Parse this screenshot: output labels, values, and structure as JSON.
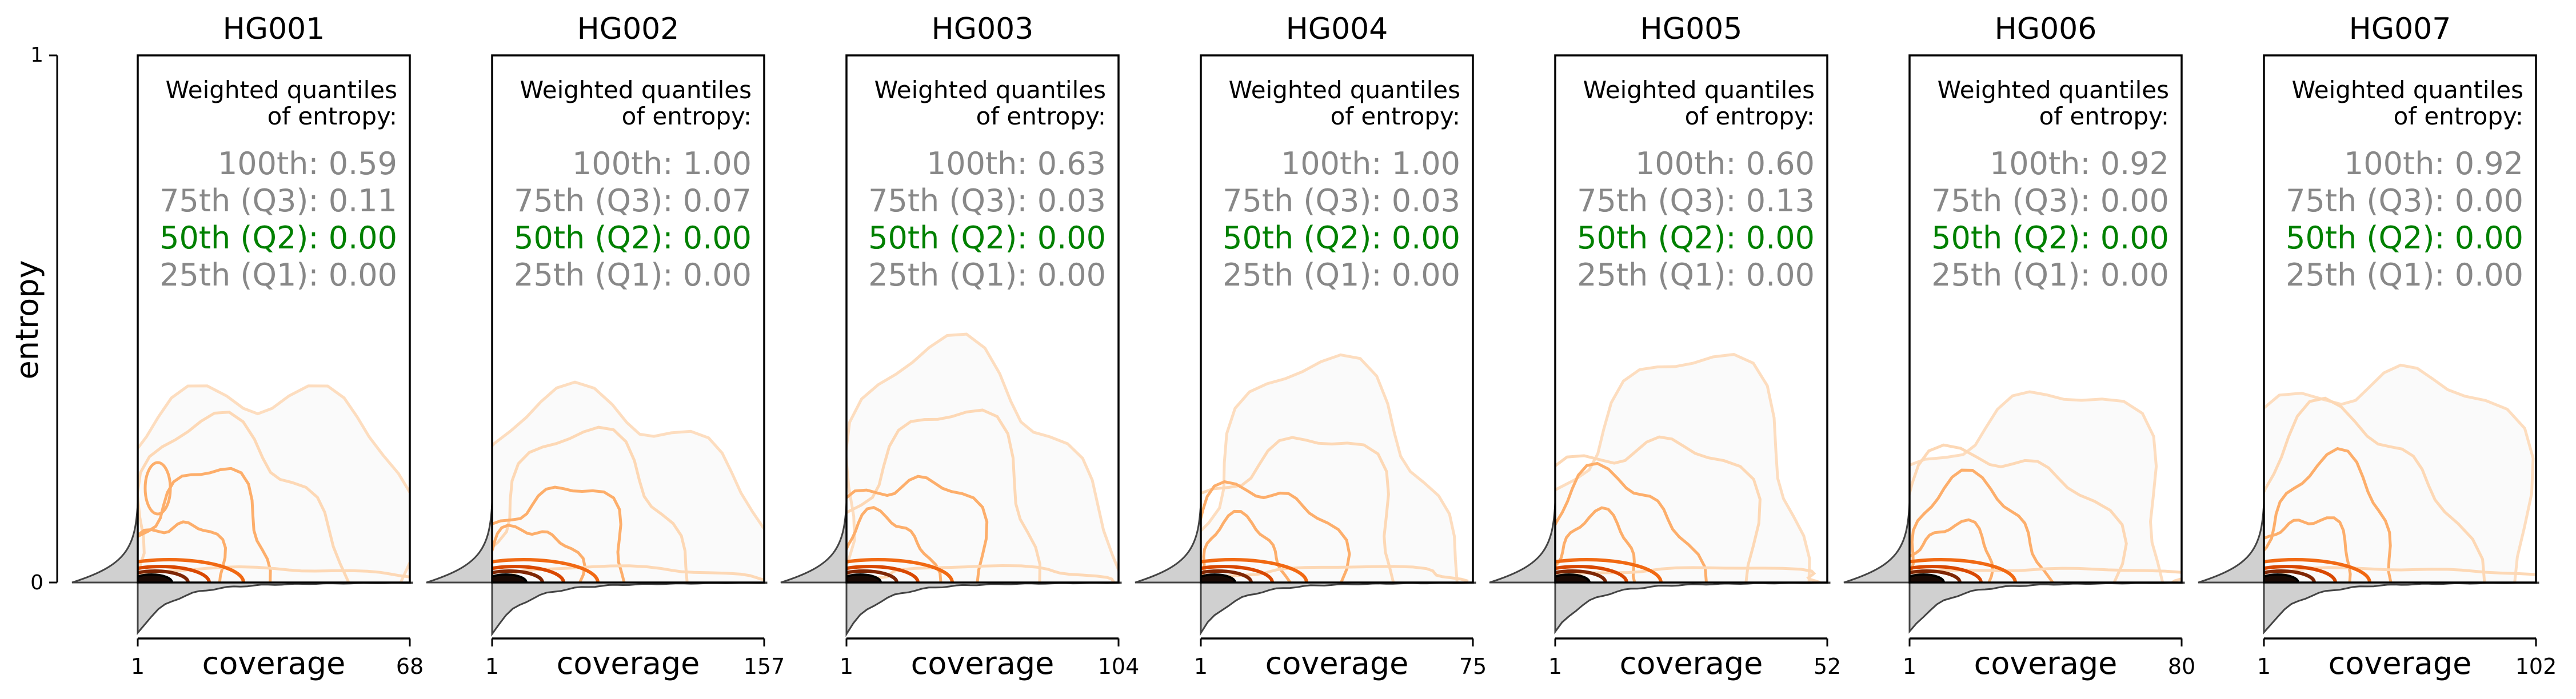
{
  "figure": {
    "ylabel": "entropy",
    "y_ticks": [
      "1",
      "0"
    ]
  },
  "colors": {
    "q2": "#008000",
    "quantile_other": "#888888",
    "heading": "#000000",
    "marginal_fill": "#d0d0d0",
    "marginal_line": "#444444",
    "contour_light": "#fdd8b5",
    "contour_mid": "#fdae6b",
    "contour_orange": "#f16913",
    "contour_red": "#d94801",
    "contour_dark": "#7f2704",
    "contour_core": "#1a0a05"
  },
  "chart_data": [
    {
      "type": "kde2d",
      "title": "HG001",
      "xlabel": "coverage",
      "xlim": [
        1,
        68
      ],
      "x_ticks": [
        "1",
        "68"
      ],
      "ylim": [
        0,
        1
      ],
      "quantiles_heading": [
        "Weighted quantiles",
        "of entropy:"
      ],
      "quantiles": [
        {
          "label": "100th: 0.59",
          "value": 0.59
        },
        {
          "label": "75th (Q3): 0.11",
          "value": 0.11
        },
        {
          "label": "50th (Q2): 0.00",
          "value": 0.0
        },
        {
          "label": "25th (Q1): 0.00",
          "value": 0.0
        }
      ]
    },
    {
      "type": "kde2d",
      "title": "HG002",
      "xlabel": "coverage",
      "xlim": [
        1,
        157
      ],
      "x_ticks": [
        "1",
        "157"
      ],
      "ylim": [
        0,
        1
      ],
      "quantiles_heading": [
        "Weighted quantiles",
        "of entropy:"
      ],
      "quantiles": [
        {
          "label": "100th: 1.00",
          "value": 1.0
        },
        {
          "label": "75th (Q3): 0.07",
          "value": 0.07
        },
        {
          "label": "50th (Q2): 0.00",
          "value": 0.0
        },
        {
          "label": "25th (Q1): 0.00",
          "value": 0.0
        }
      ]
    },
    {
      "type": "kde2d",
      "title": "HG003",
      "xlabel": "coverage",
      "xlim": [
        1,
        104
      ],
      "x_ticks": [
        "1",
        "104"
      ],
      "ylim": [
        0,
        1
      ],
      "quantiles_heading": [
        "Weighted quantiles",
        "of entropy:"
      ],
      "quantiles": [
        {
          "label": "100th: 0.63",
          "value": 0.63
        },
        {
          "label": "75th (Q3): 0.03",
          "value": 0.03
        },
        {
          "label": "50th (Q2): 0.00",
          "value": 0.0
        },
        {
          "label": "25th (Q1): 0.00",
          "value": 0.0
        }
      ]
    },
    {
      "type": "kde2d",
      "title": "HG004",
      "xlabel": "coverage",
      "xlim": [
        1,
        75
      ],
      "x_ticks": [
        "1",
        "75"
      ],
      "ylim": [
        0,
        1
      ],
      "quantiles_heading": [
        "Weighted quantiles",
        "of entropy:"
      ],
      "quantiles": [
        {
          "label": "100th: 1.00",
          "value": 1.0
        },
        {
          "label": "75th (Q3): 0.03",
          "value": 0.03
        },
        {
          "label": "50th (Q2): 0.00",
          "value": 0.0
        },
        {
          "label": "25th (Q1): 0.00",
          "value": 0.0
        }
      ]
    },
    {
      "type": "kde2d",
      "title": "HG005",
      "xlabel": "coverage",
      "xlim": [
        1,
        52
      ],
      "x_ticks": [
        "1",
        "52"
      ],
      "ylim": [
        0,
        1
      ],
      "quantiles_heading": [
        "Weighted quantiles",
        "of entropy:"
      ],
      "quantiles": [
        {
          "label": "100th: 0.60",
          "value": 0.6
        },
        {
          "label": "75th (Q3): 0.13",
          "value": 0.13
        },
        {
          "label": "50th (Q2): 0.00",
          "value": 0.0
        },
        {
          "label": "25th (Q1): 0.00",
          "value": 0.0
        }
      ]
    },
    {
      "type": "kde2d",
      "title": "HG006",
      "xlabel": "coverage",
      "xlim": [
        1,
        80
      ],
      "x_ticks": [
        "1",
        "80"
      ],
      "ylim": [
        0,
        1
      ],
      "quantiles_heading": [
        "Weighted quantiles",
        "of entropy:"
      ],
      "quantiles": [
        {
          "label": "100th: 0.92",
          "value": 0.92
        },
        {
          "label": "75th (Q3): 0.00",
          "value": 0.0
        },
        {
          "label": "50th (Q2): 0.00",
          "value": 0.0
        },
        {
          "label": "25th (Q1): 0.00",
          "value": 0.0
        }
      ]
    },
    {
      "type": "kde2d",
      "title": "HG007",
      "xlabel": "coverage",
      "xlim": [
        1,
        102
      ],
      "x_ticks": [
        "1",
        "102"
      ],
      "ylim": [
        0,
        1
      ],
      "quantiles_heading": [
        "Weighted quantiles",
        "of entropy:"
      ],
      "quantiles": [
        {
          "label": "100th: 0.92",
          "value": 0.92
        },
        {
          "label": "75th (Q3): 0.00",
          "value": 0.0
        },
        {
          "label": "50th (Q2): 0.00",
          "value": 0.0
        },
        {
          "label": "25th (Q1): 0.00",
          "value": 0.0
        }
      ]
    }
  ]
}
